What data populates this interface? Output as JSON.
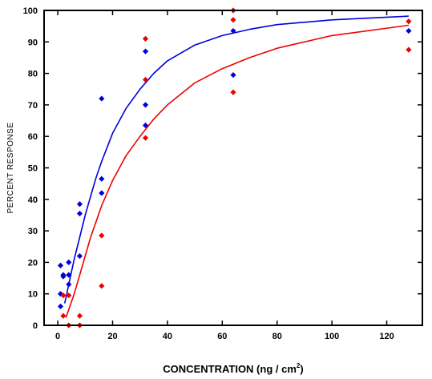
{
  "chart_data": {
    "type": "scatter",
    "title": "",
    "xlabel": "CONCENTRATION (ng / cm",
    "xlabel_sup": "2",
    "xlabel_end": ")",
    "ylabel": "PERCENT RESPONSE",
    "xlim": [
      -5,
      133
    ],
    "ylim": [
      0,
      100
    ],
    "x_ticks": [
      0,
      20,
      40,
      60,
      80,
      100,
      120
    ],
    "y_ticks": [
      0,
      10,
      20,
      30,
      40,
      50,
      60,
      70,
      80,
      90,
      100
    ],
    "grid": false,
    "series": [
      {
        "color": "#0000dd",
        "points": [
          {
            "x": 1,
            "y": 6
          },
          {
            "x": 1,
            "y": 10
          },
          {
            "x": 1,
            "y": 19
          },
          {
            "x": 2,
            "y": 16
          },
          {
            "x": 2,
            "y": 15.5
          },
          {
            "x": 4,
            "y": 20
          },
          {
            "x": 4,
            "y": 16
          },
          {
            "x": 4,
            "y": 13
          },
          {
            "x": 8,
            "y": 38.5
          },
          {
            "x": 8,
            "y": 35.5
          },
          {
            "x": 8,
            "y": 22
          },
          {
            "x": 16,
            "y": 72
          },
          {
            "x": 16,
            "y": 46.5
          },
          {
            "x": 16,
            "y": 42
          },
          {
            "x": 32,
            "y": 87
          },
          {
            "x": 32,
            "y": 70
          },
          {
            "x": 32,
            "y": 63.5
          },
          {
            "x": 64,
            "y": 93.5
          },
          {
            "x": 64,
            "y": 79.5
          },
          {
            "x": 128,
            "y": 93.5
          }
        ],
        "fit": [
          {
            "x": 2.5,
            "y": 7
          },
          {
            "x": 4,
            "y": 13
          },
          {
            "x": 6,
            "y": 21
          },
          {
            "x": 8,
            "y": 28
          },
          {
            "x": 10,
            "y": 35
          },
          {
            "x": 12,
            "y": 41
          },
          {
            "x": 14,
            "y": 47
          },
          {
            "x": 16,
            "y": 52
          },
          {
            "x": 20,
            "y": 61
          },
          {
            "x": 25,
            "y": 69
          },
          {
            "x": 30,
            "y": 75
          },
          {
            "x": 35,
            "y": 80
          },
          {
            "x": 40,
            "y": 84
          },
          {
            "x": 50,
            "y": 89
          },
          {
            "x": 60,
            "y": 92
          },
          {
            "x": 70,
            "y": 94
          },
          {
            "x": 80,
            "y": 95.5
          },
          {
            "x": 100,
            "y": 97
          },
          {
            "x": 128,
            "y": 98.2
          }
        ]
      },
      {
        "color": "#ee0000",
        "points": [
          {
            "x": 2,
            "y": 3
          },
          {
            "x": 2,
            "y": 9.5
          },
          {
            "x": 4,
            "y": 9.5
          },
          {
            "x": 4,
            "y": 0
          },
          {
            "x": 8,
            "y": 3
          },
          {
            "x": 8,
            "y": 0
          },
          {
            "x": 16,
            "y": 28.5
          },
          {
            "x": 16,
            "y": 12.5
          },
          {
            "x": 32,
            "y": 91
          },
          {
            "x": 32,
            "y": 78
          },
          {
            "x": 32,
            "y": 59.5
          },
          {
            "x": 64,
            "y": 100
          },
          {
            "x": 64,
            "y": 97
          },
          {
            "x": 64,
            "y": 74
          },
          {
            "x": 128,
            "y": 96.5
          },
          {
            "x": 128,
            "y": 87.5
          }
        ],
        "fit": [
          {
            "x": 3,
            "y": 2.5
          },
          {
            "x": 4,
            "y": 5
          },
          {
            "x": 6,
            "y": 10
          },
          {
            "x": 8,
            "y": 16
          },
          {
            "x": 10,
            "y": 22
          },
          {
            "x": 12,
            "y": 28
          },
          {
            "x": 14,
            "y": 33
          },
          {
            "x": 16,
            "y": 38
          },
          {
            "x": 20,
            "y": 46
          },
          {
            "x": 25,
            "y": 54
          },
          {
            "x": 30,
            "y": 60
          },
          {
            "x": 35,
            "y": 65.5
          },
          {
            "x": 40,
            "y": 70
          },
          {
            "x": 50,
            "y": 77
          },
          {
            "x": 60,
            "y": 81.5
          },
          {
            "x": 70,
            "y": 85
          },
          {
            "x": 80,
            "y": 88
          },
          {
            "x": 100,
            "y": 92
          },
          {
            "x": 128,
            "y": 95.3
          }
        ]
      }
    ]
  }
}
